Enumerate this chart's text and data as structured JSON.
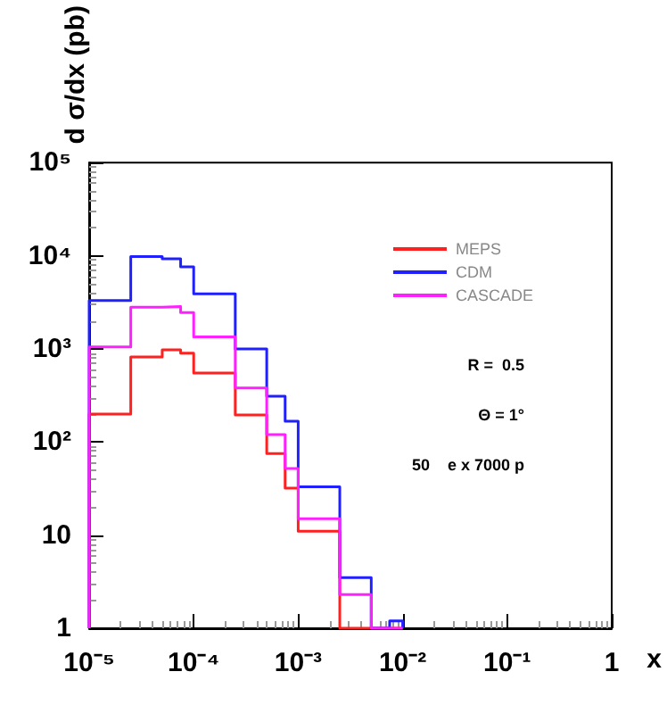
{
  "chart_data": {
    "type": "histogram",
    "xlabel": "x",
    "ylabel": "d σ/dx (pb)",
    "bins": [
      1e-05,
      2.5e-05,
      5e-05,
      7.5e-05,
      0.0001,
      0.00025,
      0.0005,
      0.00075,
      0.001,
      0.0025,
      0.005,
      0.0075,
      0.01
    ],
    "series": [
      {
        "name": "MEPS",
        "color": "#ff2020",
        "values": [
          200,
          820,
          980,
          900,
          550,
          195,
          75,
          32,
          11,
          null,
          null,
          null
        ]
      },
      {
        "name": "CDM",
        "color": "#2020ff",
        "values": [
          3300,
          9800,
          9300,
          7600,
          3900,
          1000,
          310,
          167,
          33,
          3.5,
          null,
          1.2
        ]
      },
      {
        "name": "CASCADE",
        "color": "#ff20ff",
        "values": [
          1050,
          2800,
          2850,
          2450,
          1350,
          380,
          120,
          52,
          15,
          2.3,
          null,
          null
        ]
      }
    ],
    "log": "xy",
    "xlim": [
      1e-05,
      1
    ],
    "ylim": [
      1,
      100000
    ],
    "xticks": [
      {
        "value": 1e-05,
        "label": "10⁻⁵"
      },
      {
        "value": 0.0001,
        "label": "10⁻⁴"
      },
      {
        "value": 0.001,
        "label": "10⁻³"
      },
      {
        "value": 0.01,
        "label": "10⁻²"
      },
      {
        "value": 0.1,
        "label": "10⁻¹"
      },
      1
    ],
    "yticks": [
      1,
      10,
      {
        "value": 100,
        "label": "10²"
      },
      {
        "value": 1000,
        "label": "10³"
      },
      {
        "value": 10000,
        "label": "10⁴"
      },
      {
        "value": 100000,
        "label": "10⁵"
      }
    ],
    "grid": false,
    "legend": "right",
    "annotations": [
      "R =  0.5",
      "Θ = 1°",
      "50    e x 7000 p"
    ]
  }
}
